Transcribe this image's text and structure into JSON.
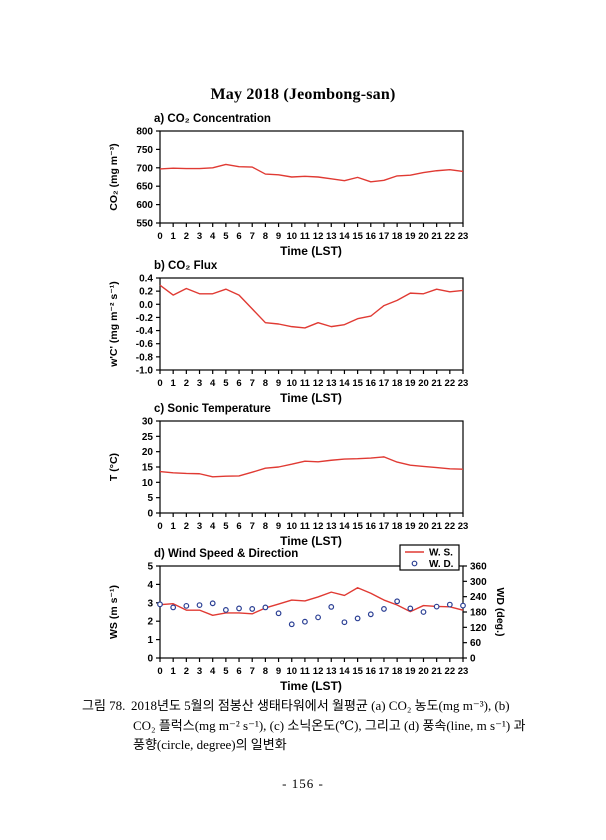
{
  "page": {
    "title": "May 2018 (Jeombong-san)",
    "page_number": "- 156 -"
  },
  "caption": {
    "label": "그림 78.",
    "lines": [
      "2018년도 5월의 점봉산 생태타워에서 월평균 (a) CO₂ 농도(mg m⁻³), (b)",
      "CO₂ 플럭스(mg m⁻² s⁻¹), (c) 소닉온도(℃), 그리고 (d) 풍속(line, m s⁻¹) 과",
      "풍향(circle, degree)의 일변화"
    ]
  },
  "colors": {
    "line_red": "#e03a33",
    "marker_blue": "#2b3f94",
    "axis": "#000000"
  },
  "chart_data": [
    {
      "type": "line",
      "title": "a) CO₂ Concentration",
      "xlabel": "Time (LST)",
      "ylabel": "CO₂ (mg m⁻³)",
      "x": [
        0,
        1,
        2,
        3,
        4,
        5,
        6,
        7,
        8,
        9,
        10,
        11,
        12,
        13,
        14,
        15,
        16,
        17,
        18,
        19,
        20,
        21,
        22,
        23
      ],
      "xlim": [
        0,
        23
      ],
      "ylim": [
        550,
        800
      ],
      "yticks": [
        800,
        750,
        700,
        650,
        600,
        550
      ],
      "ytick_labels": [
        "800",
        "750",
        "700",
        "650",
        "600",
        "550"
      ],
      "grid": false,
      "series": [
        {
          "name": "CO2 concentration",
          "color": "#e03a33",
          "type": "line",
          "values": [
            697,
            699,
            698,
            698,
            700,
            709,
            703,
            702,
            683,
            681,
            675,
            677,
            675,
            670,
            665,
            674,
            662,
            666,
            678,
            680,
            687,
            692,
            695,
            690
          ]
        }
      ]
    },
    {
      "type": "line",
      "title": "b) CO₂ Flux",
      "xlabel": "Time (LST)",
      "ylabel": "w'C' (mg m⁻² s⁻¹)",
      "x": [
        0,
        1,
        2,
        3,
        4,
        5,
        6,
        7,
        8,
        9,
        10,
        11,
        12,
        13,
        14,
        15,
        16,
        17,
        18,
        19,
        20,
        21,
        22,
        23
      ],
      "xlim": [
        0,
        23
      ],
      "ylim": [
        -1.0,
        0.4
      ],
      "yticks": [
        0.4,
        0.2,
        0.0,
        -0.2,
        -0.4,
        -0.6,
        -0.8,
        -1.0
      ],
      "ytick_labels": [
        "0.4",
        "0.2",
        "0.0",
        "-0.2",
        "-0.4",
        "-0.6",
        "-0.8",
        "-1.0"
      ],
      "grid": false,
      "series": [
        {
          "name": "CO2 flux",
          "color": "#e03a33",
          "type": "line",
          "values": [
            0.29,
            0.14,
            0.24,
            0.16,
            0.16,
            0.23,
            0.14,
            -0.07,
            -0.28,
            -0.3,
            -0.34,
            -0.36,
            -0.28,
            -0.34,
            -0.31,
            -0.22,
            -0.18,
            -0.02,
            0.06,
            0.17,
            0.16,
            0.23,
            0.19,
            0.21
          ]
        }
      ]
    },
    {
      "type": "line",
      "title": "c) Sonic Temperature",
      "xlabel": "Time (LST)",
      "ylabel": "T (°C)",
      "x": [
        0,
        1,
        2,
        3,
        4,
        5,
        6,
        7,
        8,
        9,
        10,
        11,
        12,
        13,
        14,
        15,
        16,
        17,
        18,
        19,
        20,
        21,
        22,
        23
      ],
      "xlim": [
        0,
        23
      ],
      "ylim": [
        0,
        30
      ],
      "yticks": [
        30,
        25,
        20,
        15,
        10,
        5,
        0
      ],
      "ytick_labels": [
        "30",
        "25",
        "20",
        "15",
        "10",
        "5",
        "0"
      ],
      "grid": false,
      "series": [
        {
          "name": "sonic temperature",
          "color": "#e03a33",
          "type": "line",
          "values": [
            13.5,
            13.1,
            12.9,
            12.8,
            11.8,
            12.0,
            12.1,
            13.3,
            14.6,
            15.0,
            15.9,
            16.9,
            16.7,
            17.2,
            17.6,
            17.7,
            17.9,
            18.3,
            16.6,
            15.6,
            15.2,
            14.8,
            14.4,
            14.3
          ]
        }
      ]
    },
    {
      "type": "line+scatter",
      "title": "d) Wind Speed & Direction",
      "xlabel": "Time (LST)",
      "ylabel": "WS (m s⁻¹)",
      "ylabel_right": "WD (deg.)",
      "x": [
        0,
        1,
        2,
        3,
        4,
        5,
        6,
        7,
        8,
        9,
        10,
        11,
        12,
        13,
        14,
        15,
        16,
        17,
        18,
        19,
        20,
        21,
        22,
        23
      ],
      "xlim": [
        0,
        23
      ],
      "ylim": [
        0,
        5
      ],
      "yticks": [
        5,
        4,
        3,
        2,
        1,
        0
      ],
      "ytick_labels": [
        "5",
        "4",
        "3",
        "2",
        "1",
        "0"
      ],
      "ylim_right": [
        0,
        360
      ],
      "yticks_right": [
        360,
        300,
        240,
        180,
        120,
        60,
        0
      ],
      "ytick_labels_right": [
        "360",
        "300",
        "240",
        "180",
        "120",
        "60",
        "0"
      ],
      "grid": false,
      "legend": [
        "W. S.",
        "W. D."
      ],
      "legend_position": "top-right",
      "series": [
        {
          "name": "W. S.",
          "axis": "left",
          "color": "#e03a33",
          "type": "line",
          "values": [
            2.9,
            2.95,
            2.6,
            2.6,
            2.32,
            2.45,
            2.45,
            2.4,
            2.72,
            2.93,
            3.15,
            3.1,
            3.32,
            3.58,
            3.4,
            3.82,
            3.52,
            3.15,
            2.88,
            2.52,
            2.85,
            2.8,
            2.78,
            2.6
          ]
        },
        {
          "name": "W. D.",
          "axis": "right",
          "color": "#2b3f94",
          "type": "scatter",
          "values": [
            210,
            198,
            204,
            207,
            214,
            188,
            194,
            192,
            198,
            175,
            132,
            142,
            159,
            200,
            140,
            155,
            171,
            192,
            222,
            194,
            180,
            201,
            209,
            205
          ]
        }
      ]
    }
  ]
}
